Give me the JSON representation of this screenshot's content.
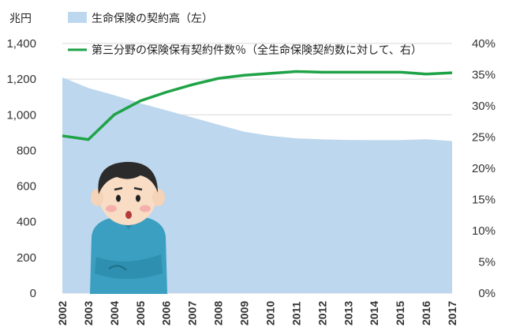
{
  "chart_data": {
    "type": "area",
    "unit_left": "兆円",
    "categories": [
      "2002",
      "2003",
      "2004",
      "2005",
      "2006",
      "2007",
      "2008",
      "2009",
      "2010",
      "2011",
      "2012",
      "2013",
      "2014",
      "2015",
      "2016",
      "2017"
    ],
    "left_axis": {
      "ylim": [
        0,
        1400
      ],
      "ticks": [
        "0",
        "200",
        "400",
        "600",
        "800",
        "1,000",
        "1,200",
        "1,400"
      ],
      "tick_values": [
        0,
        200,
        400,
        600,
        800,
        1000,
        1200,
        1400
      ]
    },
    "right_axis": {
      "ylim": [
        0,
        40
      ],
      "ticks": [
        "0%",
        "5%",
        "10%",
        "15%",
        "20%",
        "25%",
        "30%",
        "35%",
        "40%"
      ],
      "tick_values": [
        0,
        5,
        10,
        15,
        20,
        25,
        30,
        35,
        40
      ]
    },
    "series": [
      {
        "name": "生命保険の契約高（左）",
        "kind": "area",
        "axis": "left",
        "color": "#bdd7ee",
        "values": [
          1210,
          1150,
          1110,
          1065,
          1025,
          985,
          945,
          905,
          882,
          868,
          862,
          859,
          858,
          858,
          863,
          853
        ]
      },
      {
        "name": "第三分野の保険保有契約件数％（全生命保険契約数に対して、右）",
        "kind": "line",
        "axis": "right",
        "color": "#1fa347",
        "values": [
          25.2,
          24.6,
          28.6,
          30.8,
          32.2,
          33.4,
          34.4,
          34.9,
          35.2,
          35.5,
          35.4,
          35.4,
          35.4,
          35.4,
          35.1,
          35.3
        ]
      }
    ],
    "grid": true,
    "legend_position": "top"
  }
}
